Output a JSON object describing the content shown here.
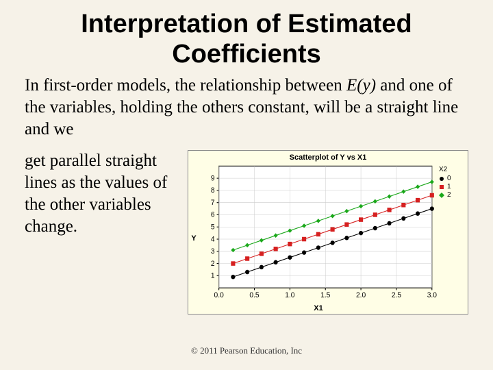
{
  "title": "Interpretation of Estimated Coefficients",
  "lead_text": "In first-order models, the relationship between",
  "ital_expr": "E(y)",
  "cont_text_1": " and one of the variables, holding the others constant, will be a straight line and we",
  "side_text": "get parallel straight lines as the values of the other variables change.",
  "footer": "© 2011 Pearson Education, Inc",
  "chart": {
    "title": "Scatterplot of Y vs X1",
    "xlabel": "X1",
    "ylabel": "Y",
    "background": "#fffee6",
    "plot_bg": "#ffffff",
    "border": "#000000",
    "grid_color": "#cccccc",
    "xlim": [
      0,
      3
    ],
    "ylim": [
      0,
      10
    ],
    "xticks": [
      0.0,
      0.5,
      1.0,
      1.5,
      2.0,
      2.5,
      3.0
    ],
    "yticks": [
      1,
      2,
      3,
      4,
      5,
      6,
      7,
      8,
      9
    ],
    "legend_title": "X2",
    "series": [
      {
        "label": "0",
        "color": "#000000",
        "marker": "circle",
        "x": [
          0.2,
          0.4,
          0.6,
          0.8,
          1.0,
          1.2,
          1.4,
          1.6,
          1.8,
          2.0,
          2.2,
          2.4,
          2.6,
          2.8,
          3.0
        ],
        "y": [
          0.9,
          1.3,
          1.7,
          2.1,
          2.5,
          2.9,
          3.3,
          3.7,
          4.1,
          4.5,
          4.9,
          5.3,
          5.7,
          6.1,
          6.5
        ]
      },
      {
        "label": "1",
        "color": "#d62020",
        "marker": "square",
        "x": [
          0.2,
          0.4,
          0.6,
          0.8,
          1.0,
          1.2,
          1.4,
          1.6,
          1.8,
          2.0,
          2.2,
          2.4,
          2.6,
          2.8,
          3.0
        ],
        "y": [
          2.0,
          2.4,
          2.8,
          3.2,
          3.6,
          4.0,
          4.4,
          4.8,
          5.2,
          5.6,
          6.0,
          6.4,
          6.8,
          7.2,
          7.6
        ]
      },
      {
        "label": "2",
        "color": "#1aa81a",
        "marker": "diamond",
        "x": [
          0.2,
          0.4,
          0.6,
          0.8,
          1.0,
          1.2,
          1.4,
          1.6,
          1.8,
          2.0,
          2.2,
          2.4,
          2.6,
          2.8,
          3.0
        ],
        "y": [
          3.1,
          3.5,
          3.9,
          4.3,
          4.7,
          5.1,
          5.5,
          5.9,
          6.3,
          6.7,
          7.1,
          7.5,
          7.9,
          8.3,
          8.7
        ]
      }
    ]
  }
}
